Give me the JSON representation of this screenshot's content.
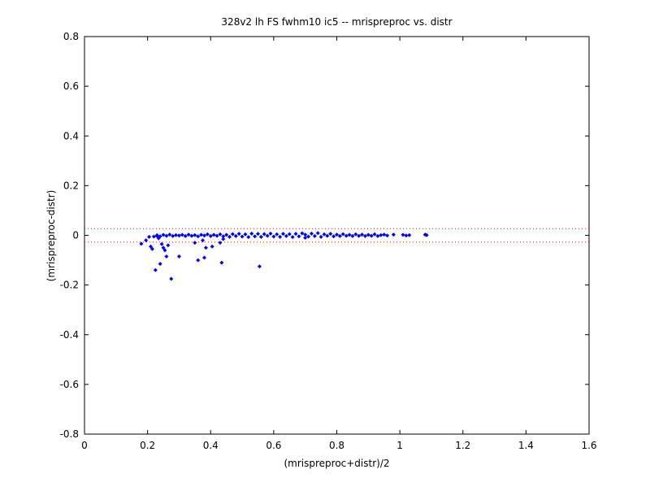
{
  "chart_data": {
    "type": "scatter",
    "title": "328v2 lh FS fwhm10 ic5 -- mrispreproc vs. distr",
    "xlabel": "(mrispreproc+distr)/2",
    "ylabel": "(mrispreproc-distr)",
    "xlim": [
      0,
      1.6
    ],
    "ylim": [
      -0.8,
      0.8
    ],
    "x_ticks": [
      0,
      0.2,
      0.4,
      0.6,
      0.8,
      1,
      1.2,
      1.4,
      1.6
    ],
    "x_tick_labels": [
      "0",
      "0.2",
      "0.4",
      "0.6",
      "0.8",
      "1",
      "1.2",
      "1.4",
      "1.6"
    ],
    "y_ticks": [
      0.8,
      0.6,
      0.4,
      0.2,
      0,
      -0.2,
      -0.4,
      -0.6,
      -0.8
    ],
    "y_tick_labels": [
      "0.8",
      "0.6",
      "0.4",
      "0.2",
      "0",
      "-0.2",
      "-0.4",
      "-0.6",
      "-0.8"
    ],
    "grid": false,
    "legend": "none",
    "reference_lines": [
      0.027,
      -0.027
    ],
    "colors": {
      "points": "#0000ff",
      "reference_lines": "#ff0000",
      "axes": "#000000"
    },
    "series": [
      {
        "values": [
          [
            0.18,
            -0.034
          ],
          [
            0.195,
            -0.02
          ],
          [
            0.205,
            -0.006
          ],
          [
            0.21,
            -0.045
          ],
          [
            0.215,
            -0.055
          ],
          [
            0.22,
            -0.005
          ],
          [
            0.225,
            -0.14
          ],
          [
            0.23,
            -0.003
          ],
          [
            0.235,
            -0.012
          ],
          [
            0.24,
            -0.115
          ],
          [
            0.245,
            -0.035
          ],
          [
            0.25,
            -0.05
          ],
          [
            0.255,
            -0.06
          ],
          [
            0.26,
            -0.085
          ],
          [
            0.265,
            -0.04
          ],
          [
            0.275,
            -0.175
          ],
          [
            0.3,
            -0.085
          ],
          [
            0.35,
            -0.03
          ],
          [
            0.36,
            -0.1
          ],
          [
            0.375,
            -0.02
          ],
          [
            0.38,
            -0.09
          ],
          [
            0.385,
            -0.05
          ],
          [
            0.405,
            -0.045
          ],
          [
            0.43,
            -0.03
          ],
          [
            0.435,
            -0.11
          ],
          [
            0.44,
            -0.015
          ],
          [
            0.555,
            -0.125
          ],
          [
            0.7,
            -0.01
          ],
          [
            0.23,
            0.001
          ],
          [
            0.24,
            -0.004
          ],
          [
            0.25,
            0.002
          ],
          [
            0.26,
            -0.002
          ],
          [
            0.27,
            0.003
          ],
          [
            0.28,
            -0.003
          ],
          [
            0.29,
            0.001
          ],
          [
            0.3,
            -0.001
          ],
          [
            0.31,
            0.002
          ],
          [
            0.32,
            -0.003
          ],
          [
            0.33,
            0.003
          ],
          [
            0.34,
            -0.002
          ],
          [
            0.35,
            0.001
          ],
          [
            0.36,
            -0.004
          ],
          [
            0.37,
            0.002
          ],
          [
            0.38,
            -0.001
          ],
          [
            0.39,
            0.004
          ],
          [
            0.4,
            -0.003
          ],
          [
            0.41,
            0.002
          ],
          [
            0.42,
            -0.002
          ],
          [
            0.43,
            0.004
          ],
          [
            0.44,
            -0.004
          ],
          [
            0.45,
            0.002
          ],
          [
            0.46,
            -0.006
          ],
          [
            0.47,
            0.005
          ],
          [
            0.48,
            -0.003
          ],
          [
            0.49,
            0.006
          ],
          [
            0.5,
            -0.005
          ],
          [
            0.51,
            0.004
          ],
          [
            0.52,
            -0.007
          ],
          [
            0.53,
            0.007
          ],
          [
            0.54,
            -0.004
          ],
          [
            0.55,
            0.006
          ],
          [
            0.56,
            -0.006
          ],
          [
            0.57,
            0.005
          ],
          [
            0.58,
            -0.002
          ],
          [
            0.59,
            0.007
          ],
          [
            0.6,
            -0.005
          ],
          [
            0.61,
            0.004
          ],
          [
            0.62,
            -0.006
          ],
          [
            0.63,
            0.006
          ],
          [
            0.64,
            -0.003
          ],
          [
            0.65,
            0.005
          ],
          [
            0.66,
            -0.007
          ],
          [
            0.67,
            0.006
          ],
          [
            0.68,
            -0.004
          ],
          [
            0.69,
            0.008
          ],
          [
            0.7,
            0.003
          ],
          [
            0.71,
            -0.005
          ],
          [
            0.72,
            0.007
          ],
          [
            0.73,
            -0.003
          ],
          [
            0.74,
            0.009
          ],
          [
            0.75,
            -0.006
          ],
          [
            0.76,
            0.004
          ],
          [
            0.77,
            -0.002
          ],
          [
            0.78,
            0.006
          ],
          [
            0.79,
            -0.004
          ],
          [
            0.8,
            0.003
          ],
          [
            0.81,
            -0.003
          ],
          [
            0.82,
            0.005
          ],
          [
            0.83,
            -0.002
          ],
          [
            0.84,
            0.002
          ],
          [
            0.85,
            -0.003
          ],
          [
            0.86,
            0.004
          ],
          [
            0.87,
            -0.002
          ],
          [
            0.88,
            0.003
          ],
          [
            0.89,
            -0.003
          ],
          [
            0.9,
            0.002
          ],
          [
            0.91,
            -0.002
          ],
          [
            0.92,
            0.004
          ],
          [
            0.93,
            -0.003
          ],
          [
            0.94,
            0.001
          ],
          [
            0.95,
            0.003
          ],
          [
            0.96,
            -0.001
          ],
          [
            0.98,
            0.003
          ],
          [
            1.01,
            0.002
          ],
          [
            1.02,
            -0.001
          ],
          [
            1.03,
            0.001
          ],
          [
            1.08,
            0.003
          ],
          [
            1.085,
            0.001
          ]
        ]
      }
    ]
  }
}
